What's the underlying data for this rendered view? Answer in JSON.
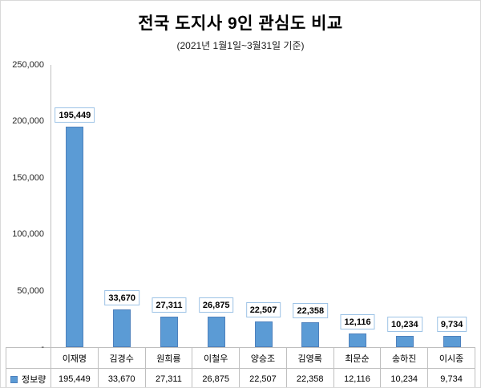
{
  "chart_data": {
    "type": "bar",
    "title": "전국 도지사 9인 관심도 비교",
    "subtitle": "(2021년 1월1일~3월31일 기준)",
    "series_name": "정보량",
    "categories": [
      "이재명",
      "김경수",
      "원희룡",
      "이철우",
      "양승조",
      "김영록",
      "최문순",
      "송하진",
      "이시종"
    ],
    "values": [
      195449,
      33670,
      27311,
      26875,
      22507,
      22358,
      12116,
      10234,
      9734
    ],
    "value_labels": [
      "195,449",
      "33,670",
      "27,311",
      "26,875",
      "22,507",
      "22,358",
      "12,116",
      "10,234",
      "9,734"
    ],
    "ylim": [
      0,
      250000
    ],
    "ytick_labels": [
      "250,000",
      "200,000",
      "150,000",
      "100,000",
      "50,000",
      "-"
    ],
    "grid": false,
    "legend_position": "table-left",
    "bar_color": "#5b9bd5",
    "bar_border_color": "#4e81bd",
    "label_box_border_color": "#9dc3e6",
    "table_border_color": "#bfbfbf"
  }
}
